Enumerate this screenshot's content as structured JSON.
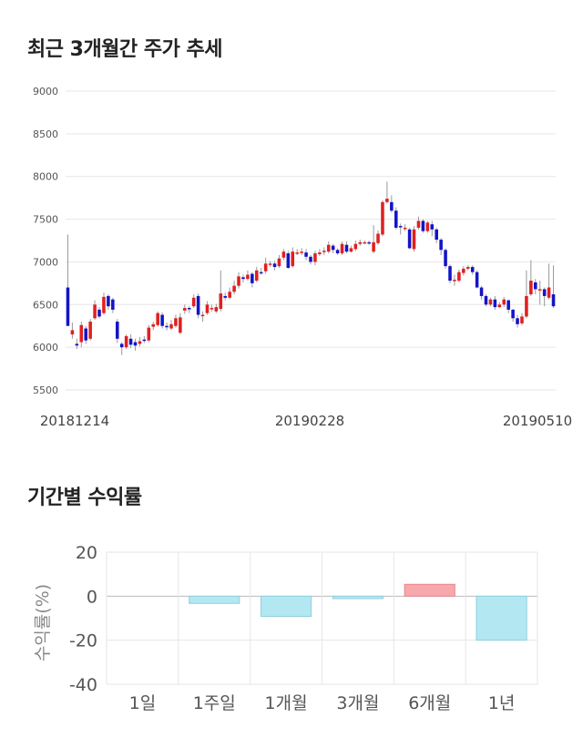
{
  "price_section": {
    "title": "최근 3개월간 주가 추세"
  },
  "return_section": {
    "title": "기간별 수익률"
  },
  "colors": {
    "up": "#e02020",
    "down": "#1414c8",
    "return_positive": "#f7a8ac",
    "return_negative": "#b3e8f2"
  },
  "chart_data": [
    {
      "type": "candlestick",
      "title": "최근 3개월간 주가 추세",
      "ylim": [
        5500,
        9000
      ],
      "yticks": [
        5500,
        6000,
        6500,
        7000,
        7500,
        8000,
        8500,
        9000
      ],
      "xtick_labels": [
        "20181214",
        "20190228",
        "20190510"
      ],
      "grid": true,
      "candles": [
        [
          6700,
          6250,
          7320,
          6250
        ],
        [
          6150,
          6200,
          6290,
          6100
        ],
        [
          6040,
          6020,
          6100,
          5980
        ],
        [
          6060,
          6260,
          6300,
          6000
        ],
        [
          6220,
          6080,
          6250,
          6040
        ],
        [
          6100,
          6300,
          6330,
          6080
        ],
        [
          6340,
          6500,
          6550,
          6320
        ],
        [
          6440,
          6360,
          6470,
          6340
        ],
        [
          6400,
          6590,
          6640,
          6380
        ],
        [
          6600,
          6480,
          6620,
          6440
        ],
        [
          6560,
          6440,
          6580,
          6400
        ],
        [
          6300,
          6100,
          6330,
          6050
        ],
        [
          6040,
          6000,
          6060,
          5910
        ],
        [
          6000,
          6130,
          6150,
          5980
        ],
        [
          6100,
          6030,
          6150,
          5990
        ],
        [
          6060,
          6020,
          6100,
          5960
        ],
        [
          6040,
          6070,
          6120,
          6010
        ],
        [
          6090,
          6080,
          6130,
          6050
        ],
        [
          6080,
          6230,
          6260,
          6060
        ],
        [
          6240,
          6270,
          6300,
          6200
        ],
        [
          6260,
          6400,
          6420,
          6240
        ],
        [
          6380,
          6250,
          6410,
          6220
        ],
        [
          6250,
          6240,
          6290,
          6200
        ],
        [
          6220,
          6270,
          6320,
          6200
        ],
        [
          6250,
          6340,
          6380,
          6230
        ],
        [
          6170,
          6350,
          6400,
          6150
        ],
        [
          6430,
          6460,
          6500,
          6390
        ],
        [
          6460,
          6450,
          6480,
          6400
        ],
        [
          6480,
          6580,
          6620,
          6460
        ],
        [
          6600,
          6380,
          6630,
          6340
        ],
        [
          6370,
          6380,
          6420,
          6300
        ],
        [
          6400,
          6500,
          6540,
          6380
        ],
        [
          6450,
          6460,
          6500,
          6420
        ],
        [
          6420,
          6470,
          6510,
          6400
        ],
        [
          6450,
          6630,
          6900,
          6420
        ],
        [
          6600,
          6580,
          6640,
          6550
        ],
        [
          6580,
          6650,
          6700,
          6560
        ],
        [
          6650,
          6720,
          6780,
          6620
        ],
        [
          6720,
          6830,
          6880,
          6690
        ],
        [
          6820,
          6800,
          6850,
          6760
        ],
        [
          6800,
          6850,
          6900,
          6780
        ],
        [
          6860,
          6750,
          6880,
          6700
        ],
        [
          6780,
          6900,
          6940,
          6760
        ],
        [
          6880,
          6870,
          6930,
          6850
        ],
        [
          6890,
          6980,
          7050,
          6860
        ],
        [
          6980,
          6980,
          7010,
          6940
        ],
        [
          6980,
          6940,
          7010,
          6900
        ],
        [
          6950,
          7040,
          7080,
          6930
        ],
        [
          7050,
          7120,
          7150,
          7020
        ],
        [
          7100,
          6930,
          7130,
          6920
        ],
        [
          6950,
          7120,
          7170,
          6930
        ],
        [
          7110,
          7110,
          7150,
          7080
        ],
        [
          7110,
          7120,
          7160,
          7080
        ],
        [
          7110,
          7060,
          7150,
          7020
        ],
        [
          7060,
          7000,
          7080,
          6970
        ],
        [
          7000,
          7100,
          7130,
          6960
        ],
        [
          7090,
          7110,
          7150,
          7070
        ],
        [
          7120,
          7130,
          7170,
          7080
        ],
        [
          7120,
          7200,
          7240,
          7100
        ],
        [
          7190,
          7140,
          7210,
          7100
        ],
        [
          7140,
          7100,
          7160,
          7080
        ],
        [
          7100,
          7210,
          7240,
          7080
        ],
        [
          7200,
          7120,
          7240,
          7100
        ],
        [
          7120,
          7160,
          7190,
          7110
        ],
        [
          7150,
          7210,
          7250,
          7130
        ],
        [
          7210,
          7230,
          7260,
          7190
        ],
        [
          7230,
          7230,
          7250,
          7210
        ],
        [
          7230,
          7220,
          7250,
          7200
        ],
        [
          7120,
          7230,
          7430,
          7100
        ],
        [
          7220,
          7330,
          7370,
          7200
        ],
        [
          7320,
          7700,
          7720,
          7300
        ],
        [
          7700,
          7740,
          7940,
          7680
        ],
        [
          7700,
          7600,
          7780,
          7580
        ],
        [
          7600,
          7400,
          7640,
          7380
        ],
        [
          7420,
          7410,
          7450,
          7320
        ],
        [
          7400,
          7400,
          7440,
          7360
        ],
        [
          7380,
          7160,
          7400,
          7150
        ],
        [
          7150,
          7380,
          7420,
          7120
        ],
        [
          7400,
          7480,
          7530,
          7380
        ],
        [
          7480,
          7360,
          7500,
          7340
        ],
        [
          7360,
          7460,
          7480,
          7340
        ],
        [
          7440,
          7380,
          7480,
          7300
        ],
        [
          7380,
          7260,
          7400,
          7220
        ],
        [
          7260,
          7140,
          7280,
          7080
        ],
        [
          7140,
          6950,
          7160,
          6920
        ],
        [
          6950,
          6780,
          6970,
          6750
        ],
        [
          6780,
          6790,
          6850,
          6720
        ],
        [
          6780,
          6880,
          6910,
          6760
        ],
        [
          6870,
          6920,
          6950,
          6840
        ],
        [
          6920,
          6940,
          6960,
          6900
        ],
        [
          6940,
          6880,
          6960,
          6850
        ],
        [
          6880,
          6700,
          6900,
          6690
        ],
        [
          6700,
          6600,
          6720,
          6560
        ],
        [
          6600,
          6500,
          6620,
          6480
        ],
        [
          6500,
          6560,
          6580,
          6480
        ],
        [
          6560,
          6470,
          6600,
          6440
        ],
        [
          6470,
          6500,
          6530,
          6460
        ],
        [
          6500,
          6560,
          6590,
          6470
        ],
        [
          6550,
          6440,
          6560,
          6400
        ],
        [
          6440,
          6340,
          6450,
          6300
        ],
        [
          6340,
          6270,
          6380,
          6230
        ],
        [
          6280,
          6360,
          6400,
          6260
        ],
        [
          6360,
          6600,
          6900,
          6340
        ],
        [
          6620,
          6780,
          7020,
          6600
        ],
        [
          6760,
          6680,
          6800,
          6620
        ],
        [
          6680,
          6680,
          6780,
          6500
        ],
        [
          6680,
          6600,
          6700,
          6480
        ],
        [
          6580,
          6700,
          6980,
          6560
        ],
        [
          6620,
          6480,
          6960,
          6460
        ]
      ]
    },
    {
      "type": "bar",
      "categories": [
        "1일",
        "1주일",
        "1개월",
        "3개월",
        "6개월",
        "1년"
      ],
      "values": [
        0.0,
        -3.3,
        -9.2,
        -1.1,
        5.4,
        -20.0
      ],
      "ylabel": "수익률(%)",
      "ylim": [
        -40,
        20
      ],
      "yticks": [
        20,
        0,
        -20,
        -40
      ],
      "grid": true
    }
  ]
}
